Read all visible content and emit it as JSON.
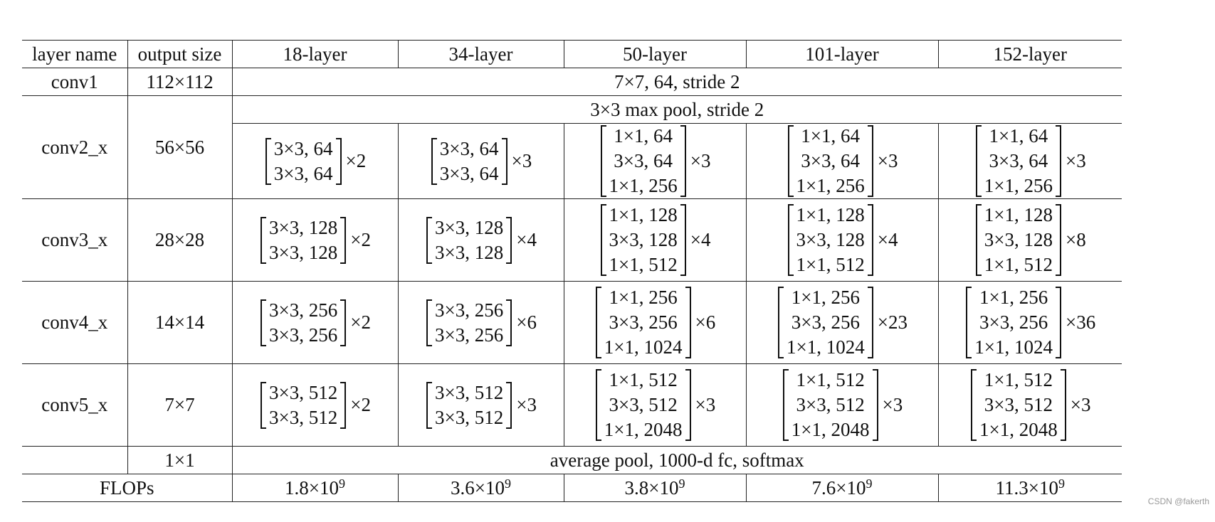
{
  "headers": [
    "layer name",
    "output size",
    "18-layer",
    "34-layer",
    "50-layer",
    "101-layer",
    "152-layer"
  ],
  "conv1": {
    "name": "conv1",
    "output": "112×112",
    "spec": "7×7, 64, stride 2"
  },
  "conv2": {
    "name": "conv2_x",
    "output": "56×56",
    "maxpool": "3×3 max pool, stride 2",
    "cells": [
      {
        "lines": [
          "3×3, 64",
          "3×3, 64"
        ],
        "mult": "×2"
      },
      {
        "lines": [
          "3×3, 64",
          "3×3, 64"
        ],
        "mult": "×3"
      },
      {
        "lines": [
          "1×1, 64",
          "3×3, 64",
          "1×1, 256"
        ],
        "mult": "×3"
      },
      {
        "lines": [
          "1×1, 64",
          "3×3, 64",
          "1×1, 256"
        ],
        "mult": "×3"
      },
      {
        "lines": [
          "1×1, 64",
          "3×3, 64",
          "1×1, 256"
        ],
        "mult": "×3"
      }
    ]
  },
  "conv3": {
    "name": "conv3_x",
    "output": "28×28",
    "cells": [
      {
        "lines": [
          "3×3, 128",
          "3×3, 128"
        ],
        "mult": "×2"
      },
      {
        "lines": [
          "3×3, 128",
          "3×3, 128"
        ],
        "mult": "×4"
      },
      {
        "lines": [
          "1×1, 128",
          "3×3, 128",
          "1×1, 512"
        ],
        "mult": "×4"
      },
      {
        "lines": [
          "1×1, 128",
          "3×3, 128",
          "1×1, 512"
        ],
        "mult": "×4"
      },
      {
        "lines": [
          "1×1, 128",
          "3×3, 128",
          "1×1, 512"
        ],
        "mult": "×8"
      }
    ]
  },
  "conv4": {
    "name": "conv4_x",
    "output": "14×14",
    "cells": [
      {
        "lines": [
          "3×3, 256",
          "3×3, 256"
        ],
        "mult": "×2"
      },
      {
        "lines": [
          "3×3, 256",
          "3×3, 256"
        ],
        "mult": "×6"
      },
      {
        "lines": [
          "1×1, 256",
          "3×3, 256",
          "1×1, 1024"
        ],
        "mult": "×6"
      },
      {
        "lines": [
          "1×1, 256",
          "3×3, 256",
          "1×1, 1024"
        ],
        "mult": "×23"
      },
      {
        "lines": [
          "1×1, 256",
          "3×3, 256",
          "1×1, 1024"
        ],
        "mult": "×36"
      }
    ]
  },
  "conv5": {
    "name": "conv5_x",
    "output": "7×7",
    "cells": [
      {
        "lines": [
          "3×3, 512",
          "3×3, 512"
        ],
        "mult": "×2"
      },
      {
        "lines": [
          "3×3, 512",
          "3×3, 512"
        ],
        "mult": "×3"
      },
      {
        "lines": [
          "1×1, 512",
          "3×3, 512",
          "1×1, 2048"
        ],
        "mult": "×3"
      },
      {
        "lines": [
          "1×1, 512",
          "3×3, 512",
          "1×1, 2048"
        ],
        "mult": "×3"
      },
      {
        "lines": [
          "1×1, 512",
          "3×3, 512",
          "1×1, 2048"
        ],
        "mult": "×3"
      }
    ]
  },
  "final": {
    "output": "1×1",
    "spec": "average pool, 1000-d fc, softmax"
  },
  "flops": {
    "label": "FLOPs",
    "values": [
      {
        "base": "1.8×10",
        "exp": "9"
      },
      {
        "base": "3.6×10",
        "exp": "9"
      },
      {
        "base": "3.8×10",
        "exp": "9"
      },
      {
        "base": "7.6×10",
        "exp": "9"
      },
      {
        "base": "11.3×10",
        "exp": "9"
      }
    ]
  },
  "watermark": "CSDN @fakerth"
}
